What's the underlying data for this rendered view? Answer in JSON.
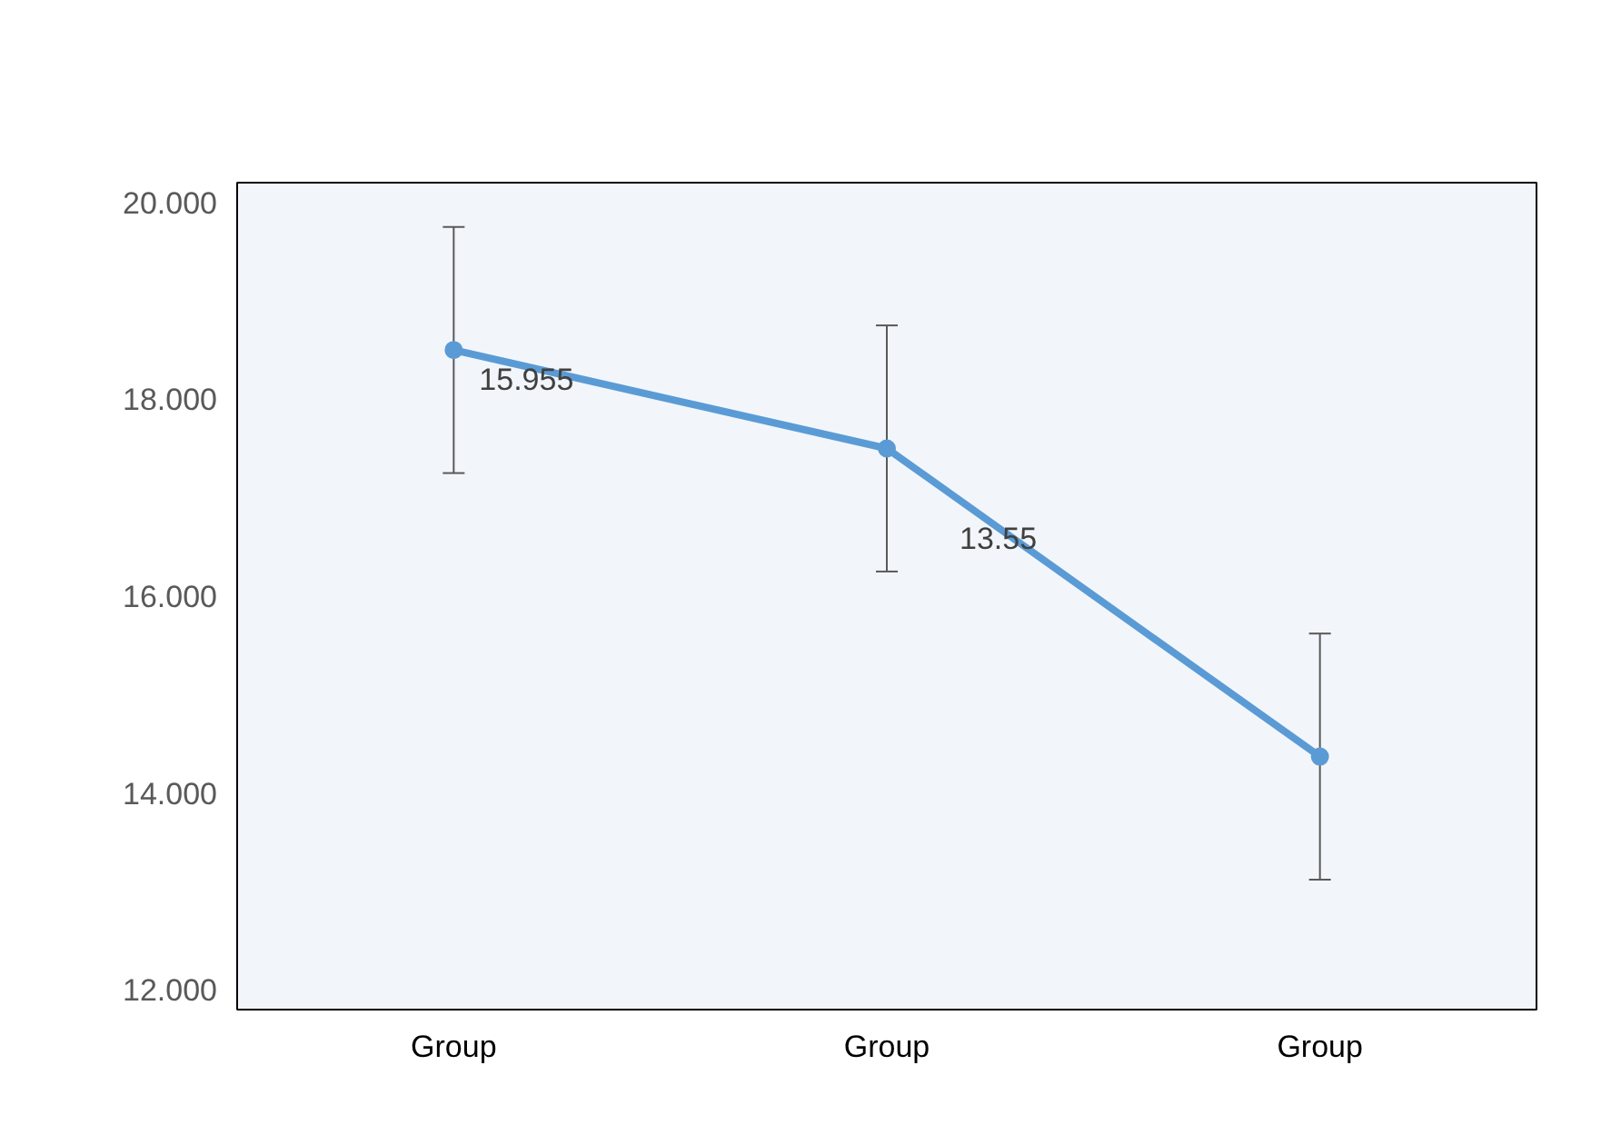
{
  "chart_data": {
    "type": "line",
    "categories": [
      "Group",
      "Group",
      "Group"
    ],
    "series": [
      {
        "color": "#5b9bd5",
        "values": [
          18.5,
          17.5,
          14.37
        ],
        "errors": [
          1.25,
          1.25,
          1.25
        ]
      }
    ],
    "annotations": [
      "15.955",
      "13.55"
    ],
    "ylim": [
      11.8,
      20.2
    ],
    "yticks": [
      {
        "value": 12,
        "label": "12.000"
      },
      {
        "value": 14,
        "label": "14.000"
      },
      {
        "value": 16,
        "label": "16.000"
      },
      {
        "value": 18,
        "label": "18.000"
      },
      {
        "value": 20,
        "label": "20.000"
      }
    ],
    "grid": false,
    "marker": "circle",
    "line_style": "solid"
  }
}
